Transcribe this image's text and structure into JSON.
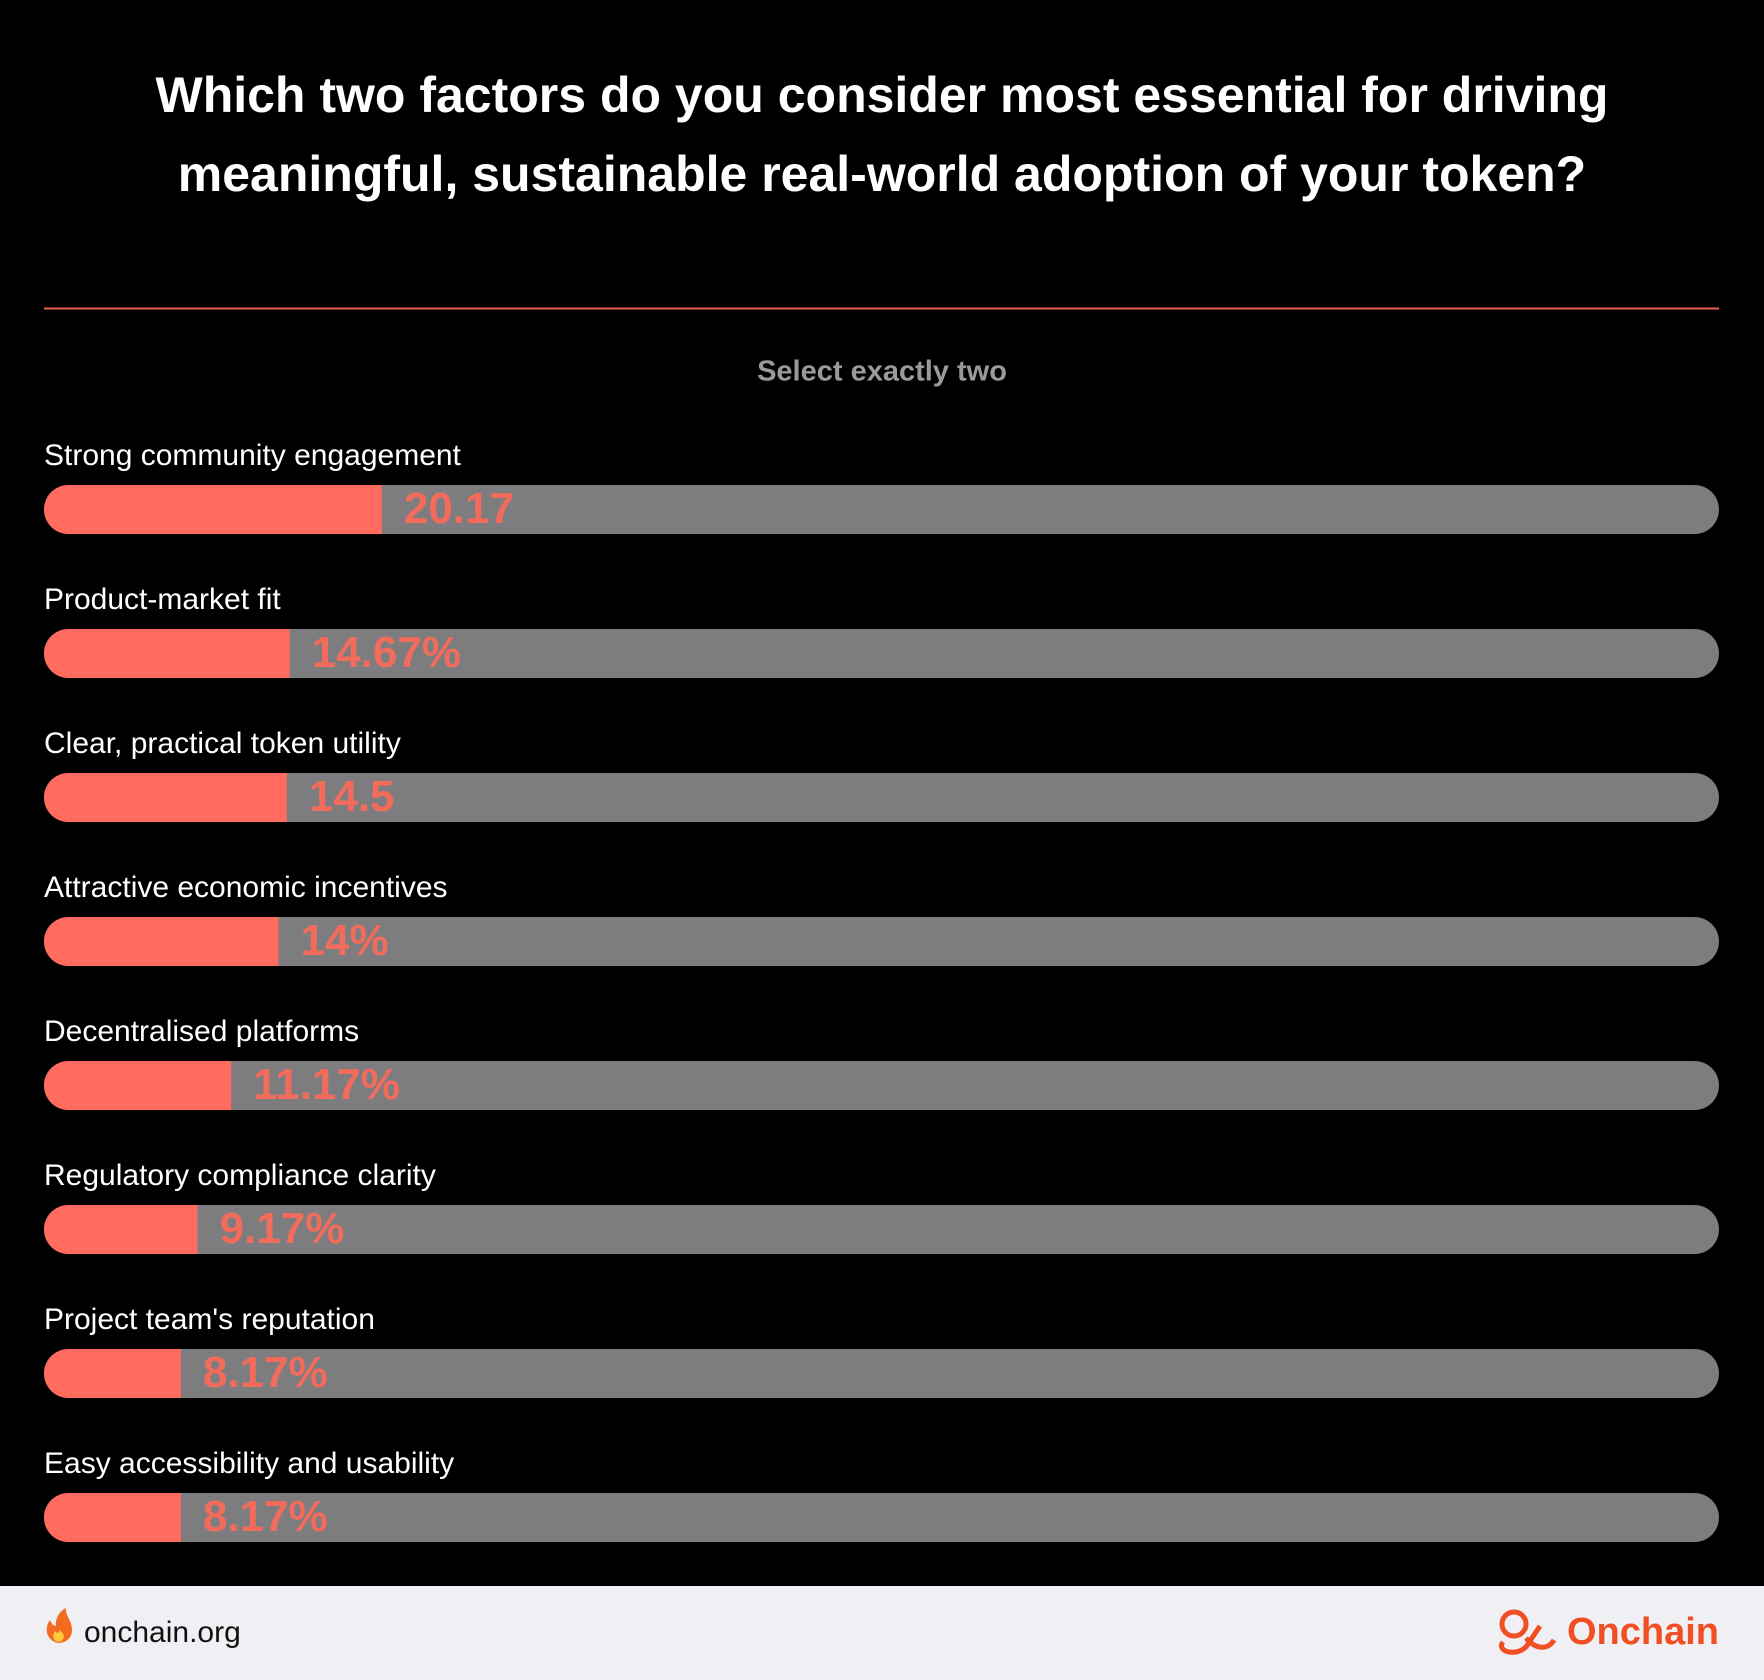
{
  "chart_data": {
    "type": "hbar",
    "title": "Which two factors do you consider most essential for driving meaningful, sustainable real-world adoption of your token?",
    "subtitle": "Select exactly two",
    "categories": [
      "Strong community engagement",
      "Product-market fit",
      "Clear, practical token utility",
      "Attractive economic incentives",
      "Decentralised platforms",
      "Regulatory compliance clarity",
      "Project team's reputation",
      "Easy accessibility and usability"
    ],
    "values": [
      20.17,
      14.67,
      14.5,
      14,
      11.17,
      9.17,
      8.17,
      8.17
    ],
    "value_labels": [
      "20.17",
      "14.67%",
      "14.5",
      "14%",
      "11.17%",
      "9.17%",
      "8.17%",
      "8.17%"
    ],
    "xlim": [
      0,
      100
    ],
    "color": "#ff6b5e",
    "track_color": "#7d7d7f",
    "label_color": "#f26b5b"
  },
  "footer": {
    "site": "onchain.org",
    "brand": "Onchain"
  }
}
